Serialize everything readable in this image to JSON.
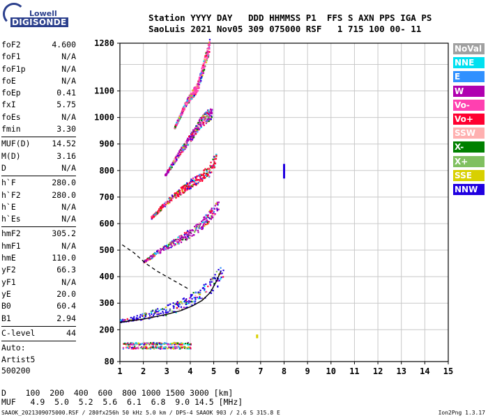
{
  "logo": {
    "line1": "Lowell",
    "line2": "DIGISONDE"
  },
  "header": {
    "line1": "Station YYYY DAY   DDD HHMMSS P1  FFS S AXN PPS IGA PS",
    "line2": "SaoLuis 2021 Nov05 309 075000 RSF   1 715 100 00- 11"
  },
  "params": [
    {
      "label": "foF2",
      "value": "4.600"
    },
    {
      "label": "foF1",
      "value": "N/A"
    },
    {
      "label": "foF1p",
      "value": "N/A"
    },
    {
      "label": "foE",
      "value": "N/A"
    },
    {
      "label": "foEp",
      "value": "0.41"
    },
    {
      "label": "fxI",
      "value": "5.75"
    },
    {
      "label": "foEs",
      "value": "N/A"
    },
    {
      "label": "fmin",
      "value": "3.30"
    },
    {
      "div": true
    },
    {
      "label": "MUF(D)",
      "value": "14.52"
    },
    {
      "label": "M(D)",
      "value": "3.16"
    },
    {
      "label": "D",
      "value": "N/A"
    },
    {
      "div": true
    },
    {
      "label": "h`F",
      "value": "280.0"
    },
    {
      "label": "h`F2",
      "value": "280.0"
    },
    {
      "label": "h`E",
      "value": "N/A"
    },
    {
      "label": "h`Es",
      "value": "N/A"
    },
    {
      "div": true
    },
    {
      "label": "hmF2",
      "value": "305.2"
    },
    {
      "label": "hmF1",
      "value": "N/A"
    },
    {
      "label": "hmE",
      "value": "110.0"
    },
    {
      "label": "yF2",
      "value": "66.3"
    },
    {
      "label": "yF1",
      "value": "N/A"
    },
    {
      "label": "yE",
      "value": "20.0"
    },
    {
      "label": "B0",
      "value": "60.4"
    },
    {
      "label": "B1",
      "value": "2.94"
    },
    {
      "div": true
    },
    {
      "label": "C-level",
      "value": "44"
    },
    {
      "div": true
    },
    {
      "text": "Auto:"
    },
    {
      "text": "Artist5"
    },
    {
      "text": "500200"
    }
  ],
  "legend": [
    {
      "label": "NoVal",
      "color": "#a0a0a0"
    },
    {
      "label": "NNE",
      "color": "#00e0f0"
    },
    {
      "label": "E",
      "color": "#3090ff"
    },
    {
      "label": "W",
      "color": "#b000b0"
    },
    {
      "label": "Vo-",
      "color": "#ff40b0"
    },
    {
      "label": "Vo+",
      "color": "#ff0030"
    },
    {
      "label": "SSW",
      "color": "#ffb0b0"
    },
    {
      "label": "X-",
      "color": "#008000"
    },
    {
      "label": "X+",
      "color": "#80c060"
    },
    {
      "label": "SSE",
      "color": "#d8d000"
    },
    {
      "label": "NNW",
      "color": "#2000e0"
    }
  ],
  "muf_table": {
    "line1": "D    100  200  400  600  800 1000 1500 3000 [km]",
    "line2": "MUF   4.9  5.0  5.2  5.6  6.1  6.8  9.0 14.5 [MHz]"
  },
  "footer": "SAAOK_2021309075000.RSF / 280fx256h 50 kHz 5.0 km / DPS-4 SAAOK 903 / 2.6 S 315.8 E",
  "version": "Ion2Png 1.3.17",
  "chart_data": {
    "type": "scatter",
    "title": "",
    "xlabel": "",
    "ylabel": "",
    "xlim": [
      1,
      15
    ],
    "ylim": [
      80,
      1280
    ],
    "x_ticks": [
      "1",
      "2",
      "3",
      "4",
      "5",
      "6",
      "7",
      "8",
      "9",
      "10",
      "11",
      "12",
      "13",
      "14",
      "15"
    ],
    "y_ticks": [
      {
        "v": 80,
        "label": "80"
      },
      {
        "v": 200,
        "label": "200"
      },
      {
        "v": 300,
        "label": "300"
      },
      {
        "v": 400,
        "label": "400"
      },
      {
        "v": 500,
        "label": "500"
      },
      {
        "v": 600,
        "label": "600"
      },
      {
        "v": 700,
        "label": "700"
      },
      {
        "v": 800,
        "label": "800"
      },
      {
        "v": 900,
        "label": "900"
      },
      {
        "v": 1000,
        "label": "1000"
      },
      {
        "v": 1100,
        "label": "1100"
      },
      {
        "v": 1280,
        "label": "1280"
      }
    ],
    "y_grid": [
      80,
      200,
      300,
      400,
      500,
      600,
      700,
      800,
      900,
      1000,
      1100,
      1200,
      1280
    ],
    "traces": [
      {
        "name": "F2 1st hop",
        "points": [
          [
            1.0,
            232
          ],
          [
            2.0,
            246
          ],
          [
            3.0,
            265
          ],
          [
            3.6,
            282
          ],
          [
            4.0,
            296
          ],
          [
            4.4,
            316
          ],
          [
            4.8,
            344
          ],
          [
            5.1,
            370
          ],
          [
            5.4,
            405
          ]
        ],
        "base": "#2000e0"
      },
      {
        "name": "F2 2nd hop",
        "points": [
          [
            2.0,
            455
          ],
          [
            2.6,
            490
          ],
          [
            3.2,
            520
          ],
          [
            3.8,
            548
          ],
          [
            4.3,
            575
          ],
          [
            4.8,
            618
          ],
          [
            5.2,
            660
          ]
        ],
        "base": "#b000b0"
      },
      {
        "name": "F2 3rd hop",
        "points": [
          [
            2.3,
            620
          ],
          [
            3.0,
            680
          ],
          [
            3.6,
            720
          ],
          [
            4.2,
            755
          ],
          [
            4.8,
            790
          ],
          [
            5.1,
            840
          ]
        ],
        "base": "#ff0030"
      },
      {
        "name": "F2 4th hop",
        "points": [
          [
            2.9,
            780
          ],
          [
            3.5,
            860
          ],
          [
            4.0,
            920
          ],
          [
            4.4,
            970
          ],
          [
            4.9,
            1010
          ]
        ],
        "base": "#b000b0"
      },
      {
        "name": "F2 5th hop",
        "points": [
          [
            3.3,
            960
          ],
          [
            3.8,
            1050
          ],
          [
            4.3,
            1110
          ],
          [
            4.6,
            1200
          ],
          [
            4.8,
            1260
          ]
        ],
        "base": "#ff40b0"
      }
    ],
    "lower_band": {
      "x_from": 1.1,
      "x_to": 4.0,
      "heights": [
        135,
        150
      ]
    },
    "isolated_points": [
      {
        "x": 8.0,
        "y_from": 770,
        "y_to": 825,
        "color": "#2000e0"
      },
      {
        "x": 6.85,
        "y_from": 168,
        "y_to": 182,
        "color": "#d8d000"
      }
    ],
    "dashed_profile": [
      [
        1.1,
        520
      ],
      [
        1.6,
        490
      ],
      [
        2.1,
        450
      ],
      [
        2.6,
        420
      ],
      [
        3.1,
        395
      ],
      [
        3.5,
        375
      ],
      [
        3.9,
        355
      ]
    ],
    "solid_profile": [
      [
        1.0,
        228
      ],
      [
        2.0,
        240
      ],
      [
        3.0,
        258
      ],
      [
        3.6,
        272
      ],
      [
        4.1,
        290
      ],
      [
        4.5,
        310
      ],
      [
        4.85,
        340
      ],
      [
        5.1,
        380
      ],
      [
        5.3,
        420
      ]
    ]
  }
}
